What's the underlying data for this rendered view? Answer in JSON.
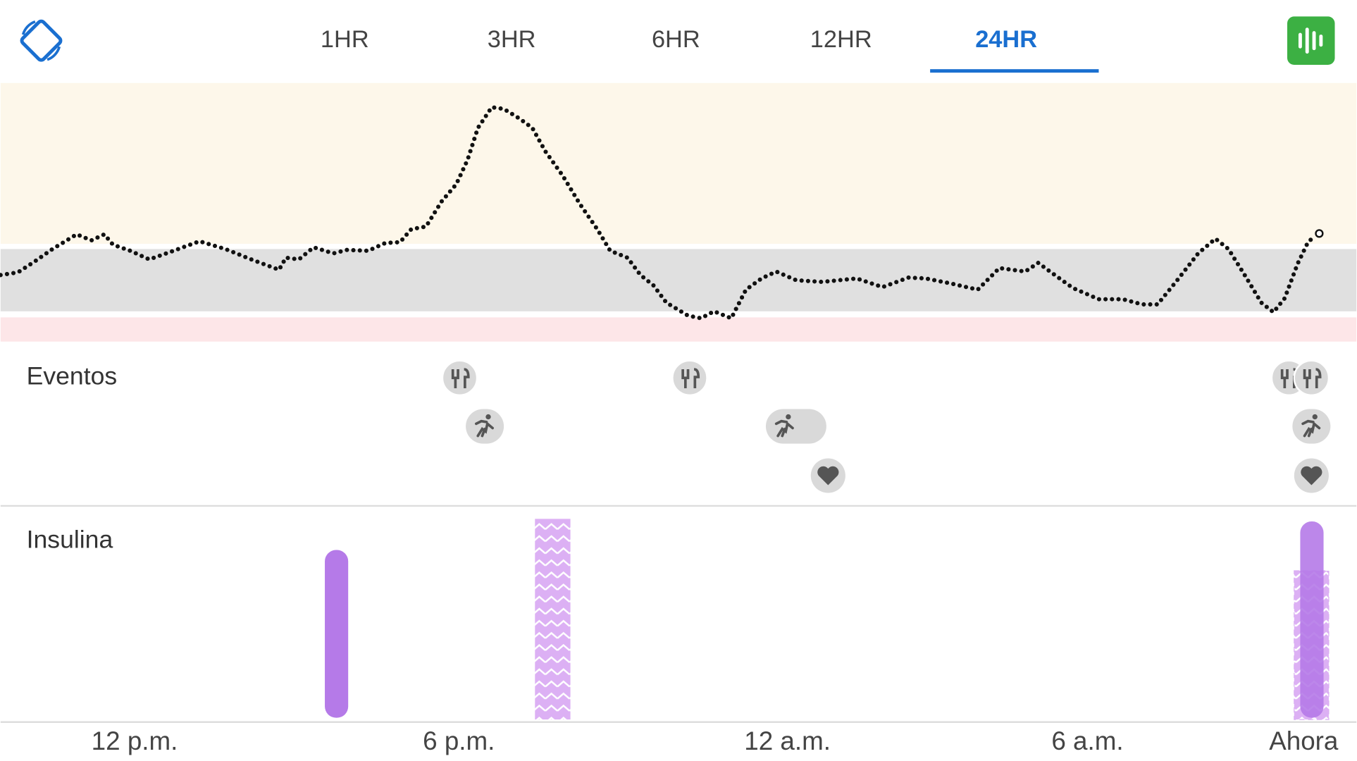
{
  "tabs": [
    "1HR",
    "3HR",
    "6HR",
    "12HR",
    "24HR"
  ],
  "selected_tab": 4,
  "events_label": "Eventos",
  "insulin_label": "Insulina",
  "time_labels": [
    "12 p.m.",
    "6 p.m.",
    "12 a.m.",
    "6 a.m.",
    "Ahora"
  ]
}
